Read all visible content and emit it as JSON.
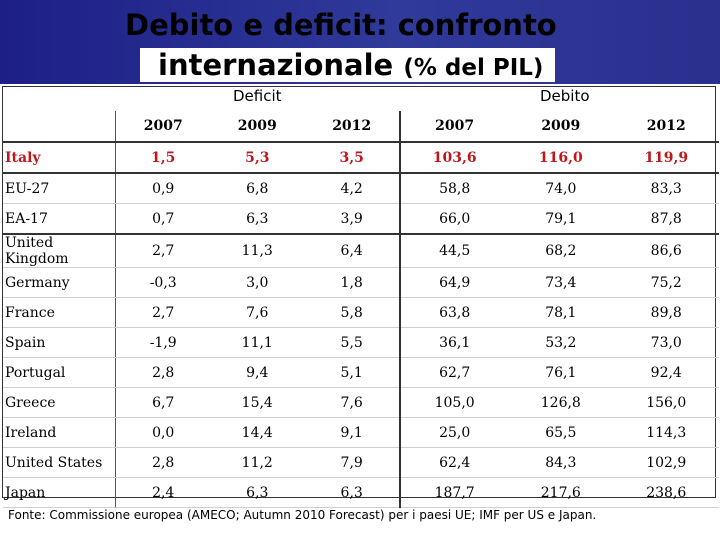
{
  "title": {
    "line1": "Debito e deficit: confronto",
    "line2_main": "internazionale",
    "line2_sub": "(% del PIL)"
  },
  "groups": {
    "deficit": "Deficit",
    "debt": "Debito"
  },
  "years": [
    "2007",
    "2009",
    "2012",
    "2007",
    "2009",
    "2012"
  ],
  "rows": [
    {
      "country": "Italy",
      "values": [
        "1,5",
        "5,3",
        "3,5",
        "103,6",
        "116,0",
        "119,9"
      ]
    },
    {
      "country": "EU-27",
      "values": [
        "0,9",
        "6,8",
        "4,2",
        "58,8",
        "74,0",
        "83,3"
      ]
    },
    {
      "country": "EA-17",
      "values": [
        "0,7",
        "6,3",
        "3,9",
        "66,0",
        "79,1",
        "87,8"
      ]
    },
    {
      "country": "United Kingdom",
      "values": [
        "2,7",
        "11,3",
        "6,4",
        "44,5",
        "68,2",
        "86,6"
      ]
    },
    {
      "country": "Germany",
      "values": [
        "-0,3",
        "3,0",
        "1,8",
        "64,9",
        "73,4",
        "75,2"
      ]
    },
    {
      "country": "France",
      "values": [
        "2,7",
        "7,6",
        "5,8",
        "63,8",
        "78,1",
        "89,8"
      ]
    },
    {
      "country": "Spain",
      "values": [
        "-1,9",
        "11,1",
        "5,5",
        "36,1",
        "53,2",
        "73,0"
      ]
    },
    {
      "country": "Portugal",
      "values": [
        "2,8",
        "9,4",
        "5,1",
        "62,7",
        "76,1",
        "92,4"
      ]
    },
    {
      "country": "Greece",
      "values": [
        "6,7",
        "15,4",
        "7,6",
        "105,0",
        "126,8",
        "156,0"
      ]
    },
    {
      "country": "Ireland",
      "values": [
        "0,0",
        "14,4",
        "9,1",
        "25,0",
        "65,5",
        "114,3"
      ]
    },
    {
      "country": "United States",
      "values": [
        "2,8",
        "11,2",
        "7,9",
        "62,4",
        "84,3",
        "102,9"
      ]
    },
    {
      "country": "Japan",
      "values": [
        "2,4",
        "6,3",
        "6,3",
        "187,7",
        "217,6",
        "238,6"
      ]
    }
  ],
  "footer": "Fonte: Commissione europea (AMECO; Autumn 2010 Forecast) per i paesi UE; IMF per US e Japan."
}
